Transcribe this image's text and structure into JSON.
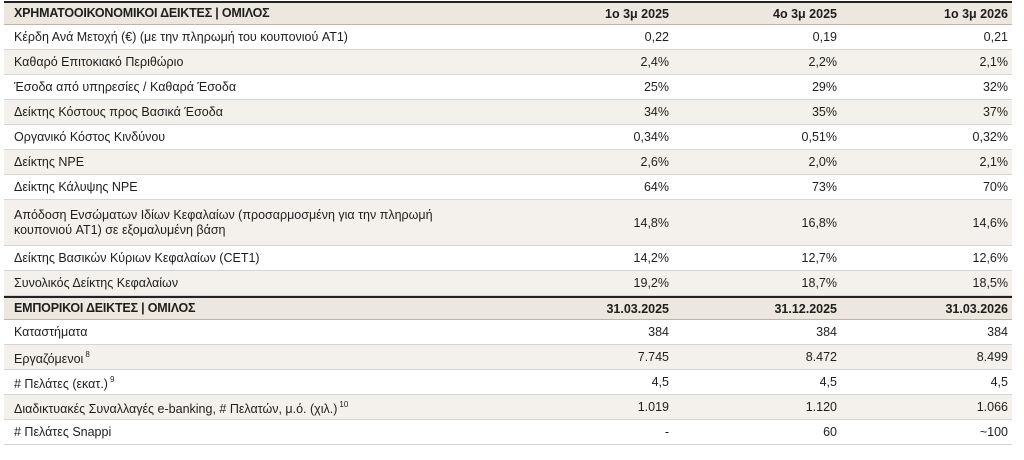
{
  "financial": {
    "header": [
      "ΧΡΗΜΑΤΟΟΙΚΟΝΟΜΙΚΟΙ ΔΕΙΚΤΕΣ | ΟΜΙΛΟΣ",
      "1ο 3μ 2025",
      "4ο 3μ 2025",
      "1ο 3μ 2026"
    ],
    "rows": [
      {
        "label": "Κέρδη Ανά Μετοχή (€) (με την πληρωμή του κουπονιού AT1)",
        "v": [
          "0,22",
          "0,19",
          "0,21"
        ]
      },
      {
        "label": "Καθαρό Επιτοκιακό Περιθώριο",
        "v": [
          "2,4%",
          "2,2%",
          "2,1%"
        ]
      },
      {
        "label": "Έσοδα από υπηρεσίες / Καθαρά Έσοδα",
        "v": [
          "25%",
          "29%",
          "32%"
        ]
      },
      {
        "label": "Δείκτης Κόστους προς Βασικά Έσοδα",
        "v": [
          "34%",
          "35%",
          "37%"
        ]
      },
      {
        "label": "Οργανικό Κόστος Κινδύνου",
        "v": [
          "0,34%",
          "0,51%",
          "0,32%"
        ]
      },
      {
        "label": "Δείκτης NPE",
        "v": [
          "2,6%",
          "2,0%",
          "2,1%"
        ]
      },
      {
        "label": "Δείκτης Κάλυψης NPE",
        "v": [
          "64%",
          "73%",
          "70%"
        ]
      },
      {
        "label": "Απόδοση Ενσώματων Ιδίων Κεφαλαίων (προσαρμοσμένη για την πληρωμή κουπονιού AT1) σε εξομαλυμένη βάση",
        "v": [
          "14,8%",
          "16,8%",
          "14,6%"
        ]
      },
      {
        "label": "Δείκτης Βασικών Κύριων Κεφαλαίων (CET1)",
        "v": [
          "14,2%",
          "12,7%",
          "12,6%"
        ]
      },
      {
        "label": "Συνολικός Δείκτης Κεφαλαίων",
        "v": [
          "19,2%",
          "18,7%",
          "18,5%"
        ]
      }
    ]
  },
  "commercial": {
    "header": [
      "ΕΜΠΟΡΙΚΟΙ ΔΕΙΚΤΕΣ | ΟΜΙΛΟΣ",
      "31.03.2025",
      "31.12.2025",
      "31.03.2026"
    ],
    "rows": [
      {
        "label": "Καταστήματα",
        "sup": "",
        "v": [
          "384",
          "384",
          "384"
        ]
      },
      {
        "label": "Εργαζόμενοι",
        "sup": "8",
        "v": [
          "7.745",
          "8.472",
          "8.499"
        ]
      },
      {
        "label": "# Πελάτες (εκατ.)",
        "sup": "9",
        "v": [
          "4,5",
          "4,5",
          "4,5"
        ]
      },
      {
        "label": "Διαδικτυακές Συναλλαγές e-banking, # Πελατών, μ.ό. (χιλ.)",
        "sup": "10",
        "v": [
          "1.019",
          "1.120",
          "1.066"
        ]
      },
      {
        "label": "# Πελάτες Snappi",
        "sup": "",
        "v": [
          "-",
          "60",
          "~100"
        ]
      }
    ]
  }
}
